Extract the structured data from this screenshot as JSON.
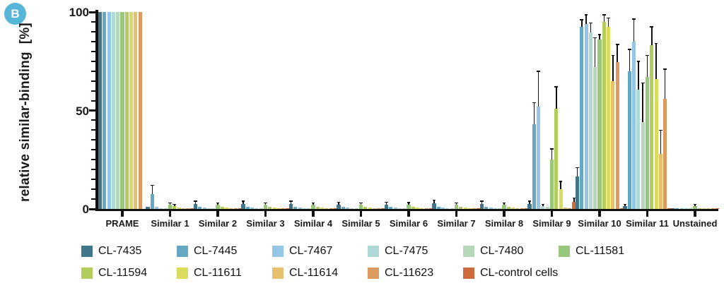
{
  "figure": {
    "panel_label": "B"
  },
  "chart_data": {
    "type": "bar",
    "title": "",
    "xlabel": "",
    "ylabel": "relative similar-binding  [%]",
    "ylim": [
      0,
      100
    ],
    "yticks": [
      0,
      50,
      100
    ],
    "minor_tick_step": 5,
    "grid": false,
    "legend_position": "bottom",
    "error_bars": "upper",
    "categories": [
      "PRAME",
      "Similar 1",
      "Similar 2",
      "Similar 3",
      "Similar 4",
      "Similar 5",
      "Similar 6",
      "Similar 7",
      "Similar 8",
      "Similar 9",
      "Similar 10",
      "Similar 11",
      "Unstained"
    ],
    "series": [
      {
        "name": "CL-7435",
        "color": "#41758a",
        "values": [
          100,
          1,
          2.5,
          2.5,
          2.5,
          2.2,
          2.2,
          3,
          2.5,
          2.4,
          16.5,
          1.5,
          0.4
        ],
        "errors": [
          0,
          0.5,
          1.5,
          1.5,
          1.5,
          1.2,
          1.2,
          1.5,
          1.5,
          1.5,
          4.5,
          0.8,
          0.3
        ]
      },
      {
        "name": "CL-7445",
        "color": "#64a8c4",
        "values": [
          100,
          7.5,
          1,
          1,
          1,
          1,
          1,
          1,
          1,
          43,
          92.5,
          70,
          0.3
        ],
        "errors": [
          0,
          4.5,
          0.5,
          0.5,
          0.5,
          0.5,
          0.5,
          0.5,
          0.5,
          11,
          3.5,
          11,
          0.2
        ]
      },
      {
        "name": "CL-7467",
        "color": "#93c7e5",
        "values": [
          100,
          1,
          0.8,
          0.8,
          0.8,
          0.8,
          0.8,
          0.8,
          0.8,
          52,
          94,
          85,
          0.3
        ],
        "errors": [
          0,
          0.5,
          0.4,
          0.4,
          0.4,
          0.4,
          0.4,
          0.4,
          0.4,
          18,
          4.5,
          11.5,
          0.2
        ]
      },
      {
        "name": "CL-7475",
        "color": "#aed9d6",
        "values": [
          100,
          0.5,
          0.5,
          0.5,
          0.5,
          0.5,
          0.5,
          0.5,
          0.5,
          1.5,
          89.5,
          60.5,
          0.3
        ],
        "errors": [
          0,
          0.3,
          0.3,
          0.3,
          0.3,
          0.3,
          0.3,
          0.3,
          0.3,
          0.8,
          5,
          14.5,
          0.2
        ]
      },
      {
        "name": "CL-7480",
        "color": "#b5d9b8",
        "values": [
          100,
          0.5,
          0.5,
          0.5,
          0.5,
          0.5,
          0.5,
          0.5,
          0.5,
          1,
          72,
          44,
          0.3
        ],
        "errors": [
          0,
          0.3,
          0.3,
          0.3,
          0.3,
          0.3,
          0.3,
          0.3,
          0.3,
          0.5,
          15,
          20,
          0.2
        ]
      },
      {
        "name": "CL-11581",
        "color": "#98c77c",
        "values": [
          100,
          2,
          2,
          2,
          2,
          2,
          2.2,
          2,
          2,
          25,
          86,
          67,
          1.5
        ],
        "errors": [
          0,
          1,
          1,
          1,
          1,
          1,
          1,
          1,
          1,
          5.5,
          2.5,
          11,
          0.8
        ]
      },
      {
        "name": "CL-11594",
        "color": "#b2cd5c",
        "values": [
          100,
          1.5,
          1,
          1.2,
          1,
          1.2,
          1,
          1.2,
          1,
          51,
          95,
          83,
          0.5
        ],
        "errors": [
          0,
          0.8,
          0.5,
          0.6,
          0.5,
          0.6,
          0.5,
          0.6,
          0.5,
          11,
          3.5,
          9.5,
          0.3
        ]
      },
      {
        "name": "CL-11611",
        "color": "#d9dc5d",
        "values": [
          100,
          0.8,
          0.8,
          0.8,
          0.8,
          0.8,
          0.8,
          0.8,
          0.8,
          10,
          92.5,
          66,
          0.3
        ],
        "errors": [
          0,
          0.4,
          0.4,
          0.4,
          0.4,
          0.4,
          0.4,
          0.4,
          0.4,
          4,
          4.5,
          18,
          0.2
        ]
      },
      {
        "name": "CL-11614",
        "color": "#e6c06c",
        "values": [
          100,
          0.5,
          0.5,
          0.5,
          0.5,
          0.5,
          0.5,
          0.5,
          0.5,
          0.8,
          65,
          28,
          0.3
        ],
        "errors": [
          0,
          0.3,
          0.3,
          0.3,
          0.3,
          0.3,
          0.3,
          0.3,
          0.3,
          0.4,
          13,
          12,
          0.2
        ]
      },
      {
        "name": "CL-11623",
        "color": "#dc9a5e",
        "values": [
          100,
          0.5,
          0.5,
          0.5,
          0.5,
          0.5,
          0.5,
          0.5,
          0.5,
          0.5,
          74.5,
          56,
          0.3
        ],
        "errors": [
          0,
          0.3,
          0.3,
          0.3,
          0.3,
          0.3,
          0.3,
          0.3,
          0.3,
          0.3,
          9,
          15,
          0.2
        ]
      },
      {
        "name": "CL-control cells",
        "color": "#cd6b3d",
        "values": [
          0,
          0.3,
          0.3,
          0.3,
          0.3,
          0.3,
          0.3,
          0.3,
          0.3,
          3.6,
          0.5,
          0.5,
          0.3
        ],
        "errors": [
          0,
          0.2,
          0.2,
          0.2,
          0.2,
          0.2,
          0.2,
          0.2,
          0.2,
          2,
          0.3,
          0.3,
          0.2
        ]
      }
    ]
  }
}
